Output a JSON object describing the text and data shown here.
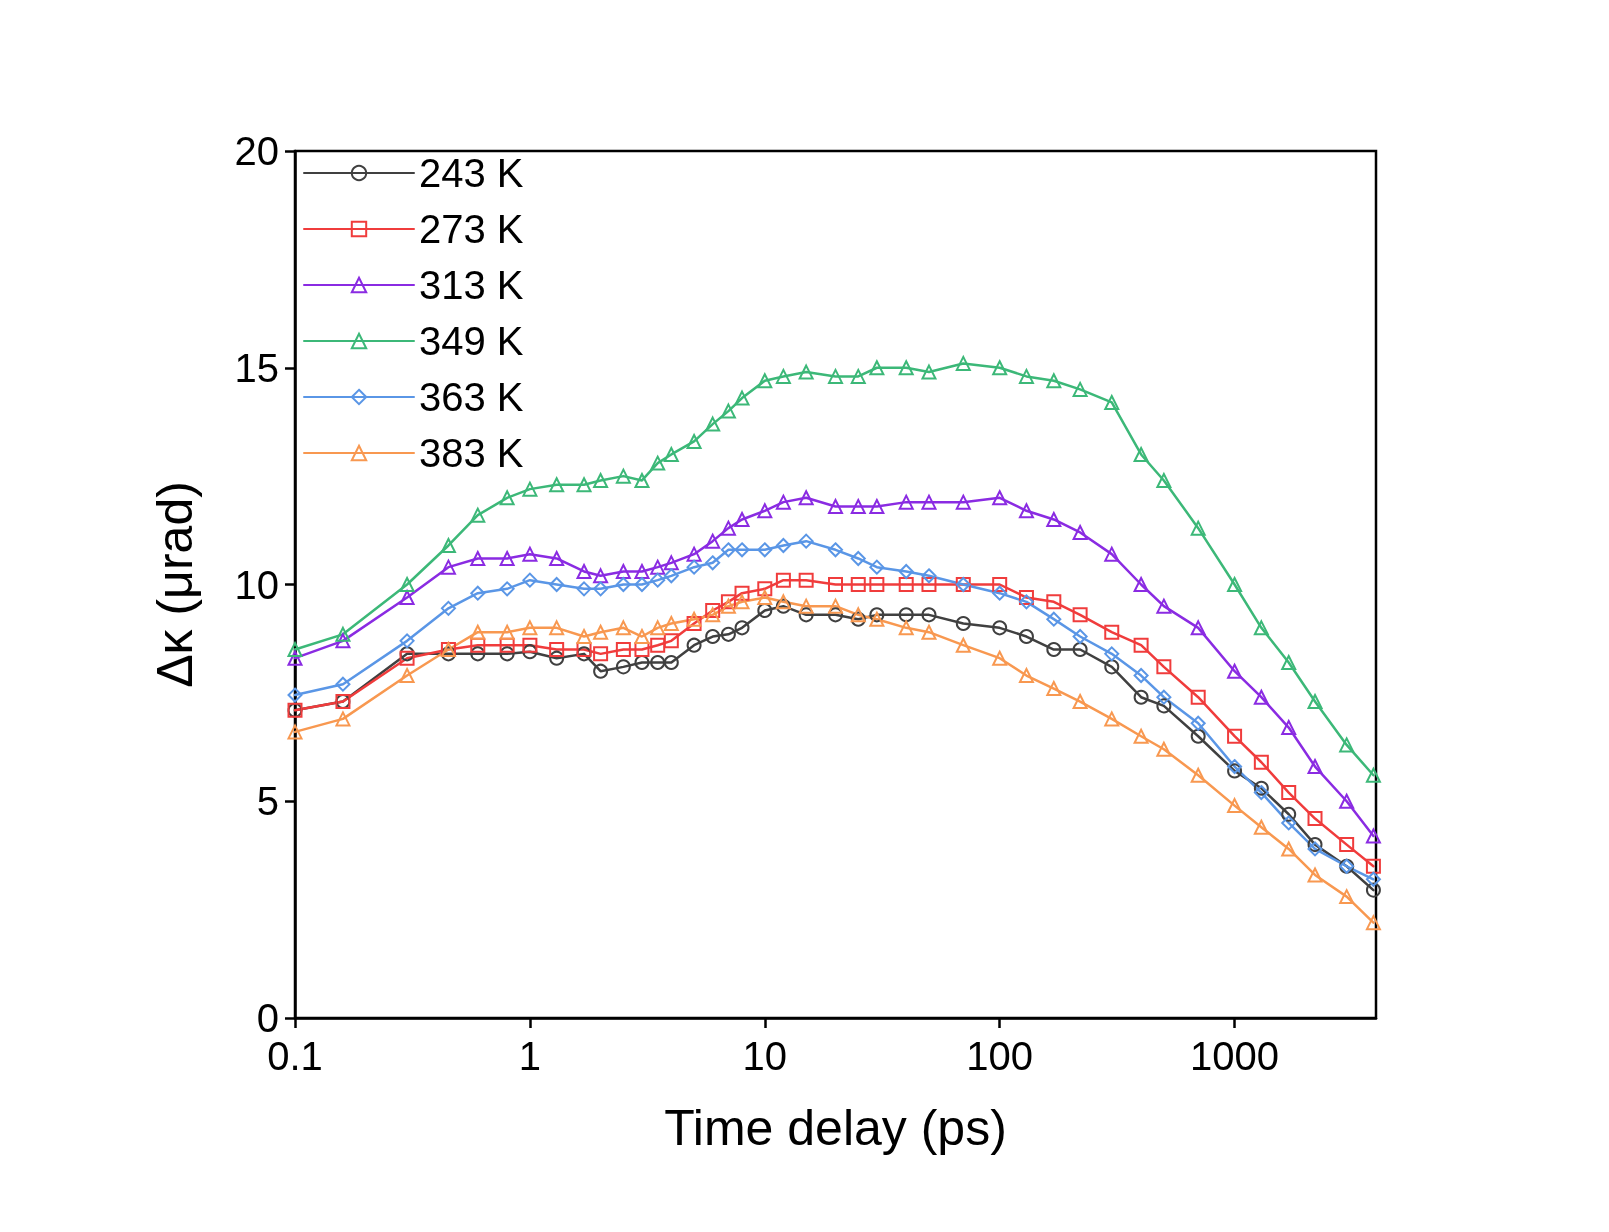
{
  "chart_data": {
    "type": "line",
    "xlabel": "Time delay (ps)",
    "ylabel": "Δκ (μrad)",
    "log": "x",
    "xlim": [
      0.1,
      4000
    ],
    "xticks": [
      0.1,
      1,
      10,
      100,
      1000
    ],
    "ylim": [
      0,
      20
    ],
    "yticks": [
      0,
      5,
      10,
      15,
      20
    ],
    "grid": false,
    "legend": "top left",
    "x": [
      0.1,
      0.16,
      0.3,
      0.45,
      0.6,
      0.8,
      1,
      1.3,
      1.7,
      2,
      2.5,
      3,
      3.5,
      4,
      5,
      6,
      7,
      8,
      10,
      12,
      15,
      20,
      25,
      30,
      40,
      50,
      70,
      100,
      130,
      170,
      220,
      300,
      400,
      500,
      700,
      1000,
      1300,
      1700,
      2200,
      3000,
      3900
    ],
    "series": [
      {
        "name": "243 K",
        "color": "#404040",
        "marker": "circle",
        "values": [
          7.1,
          7.3,
          8.4,
          8.4,
          8.4,
          8.4,
          8.45,
          8.3,
          8.4,
          8.0,
          8.1,
          8.2,
          8.2,
          8.2,
          8.6,
          8.8,
          8.85,
          9.0,
          9.4,
          9.5,
          9.3,
          9.3,
          9.2,
          9.3,
          9.3,
          9.3,
          9.1,
          9.0,
          8.8,
          8.5,
          8.5,
          8.1,
          7.4,
          7.2,
          6.5,
          5.7,
          5.3,
          4.7,
          4.0,
          3.5,
          2.95
        ]
      },
      {
        "name": "273 K",
        "color": "#f03c3c",
        "marker": "square",
        "values": [
          7.1,
          7.3,
          8.3,
          8.5,
          8.6,
          8.6,
          8.6,
          8.5,
          8.5,
          8.4,
          8.5,
          8.5,
          8.6,
          8.7,
          9.1,
          9.4,
          9.6,
          9.8,
          9.9,
          10.1,
          10.1,
          10.0,
          10.0,
          10.0,
          10.0,
          10.0,
          10.0,
          10.0,
          9.7,
          9.6,
          9.3,
          8.9,
          8.6,
          8.1,
          7.4,
          6.5,
          5.9,
          5.2,
          4.6,
          4.0,
          3.5
        ]
      },
      {
        "name": "313 K",
        "color": "#8a2be2",
        "marker": "triangle",
        "values": [
          8.3,
          8.7,
          9.7,
          10.4,
          10.6,
          10.6,
          10.7,
          10.6,
          10.3,
          10.2,
          10.3,
          10.3,
          10.4,
          10.5,
          10.7,
          11.0,
          11.3,
          11.5,
          11.7,
          11.9,
          12.0,
          11.8,
          11.8,
          11.8,
          11.9,
          11.9,
          11.9,
          12.0,
          11.7,
          11.5,
          11.2,
          10.7,
          10.0,
          9.5,
          9.0,
          8.0,
          7.4,
          6.7,
          5.8,
          5.0,
          4.2
        ]
      },
      {
        "name": "349 K",
        "color": "#3cb878",
        "marker": "triangle",
        "values": [
          8.5,
          8.85,
          10.0,
          10.9,
          11.6,
          12.0,
          12.2,
          12.3,
          12.3,
          12.4,
          12.5,
          12.4,
          12.8,
          13.0,
          13.3,
          13.7,
          14.0,
          14.3,
          14.7,
          14.8,
          14.9,
          14.8,
          14.8,
          15.0,
          15.0,
          14.9,
          15.1,
          15.0,
          14.8,
          14.7,
          14.5,
          14.2,
          13.0,
          12.4,
          11.3,
          10.0,
          9.0,
          8.2,
          7.3,
          6.3,
          5.6
        ]
      },
      {
        "name": "363 K",
        "color": "#5a96e6",
        "marker": "diamond",
        "values": [
          7.45,
          7.7,
          8.7,
          9.45,
          9.8,
          9.9,
          10.1,
          10.0,
          9.9,
          9.9,
          10.0,
          10.0,
          10.1,
          10.2,
          10.4,
          10.5,
          10.8,
          10.8,
          10.8,
          10.9,
          11.0,
          10.8,
          10.6,
          10.4,
          10.3,
          10.2,
          10.0,
          9.8,
          9.6,
          9.2,
          8.8,
          8.4,
          7.9,
          7.4,
          6.8,
          5.8,
          5.2,
          4.5,
          3.9,
          3.5,
          3.2
        ]
      },
      {
        "name": "383 K",
        "color": "#f89850",
        "marker": "triangle",
        "values": [
          6.6,
          6.9,
          7.9,
          8.5,
          8.9,
          8.9,
          9.0,
          9.0,
          8.8,
          8.9,
          9.0,
          8.8,
          9.0,
          9.1,
          9.2,
          9.3,
          9.5,
          9.6,
          9.7,
          9.6,
          9.5,
          9.5,
          9.3,
          9.2,
          9.0,
          8.9,
          8.6,
          8.3,
          7.9,
          7.6,
          7.3,
          6.9,
          6.5,
          6.2,
          5.6,
          4.9,
          4.4,
          3.9,
          3.3,
          2.8,
          2.2
        ]
      }
    ]
  }
}
